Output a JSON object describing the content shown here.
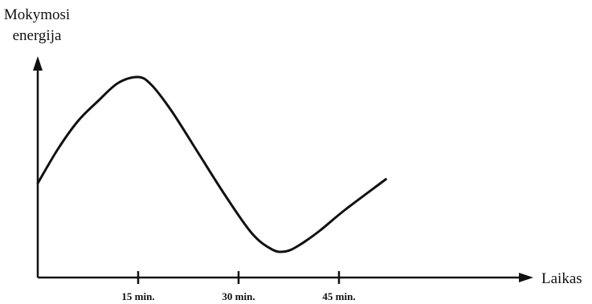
{
  "chart_data": {
    "type": "line",
    "ylabel": [
      "Mokymosi",
      "energija"
    ],
    "xlabel": "Laikas",
    "xlim": [
      0,
      72
    ],
    "ylim": [
      0,
      10
    ],
    "xticks": [
      {
        "value": 15,
        "label": "15 min."
      },
      {
        "value": 30,
        "label": "30 min."
      },
      {
        "value": 45,
        "label": "45 min."
      }
    ],
    "series": [
      {
        "color": "#111111",
        "x": [
          0,
          3,
          6,
          9,
          12,
          15,
          17,
          20,
          24,
          28,
          32,
          35,
          37,
          39,
          42,
          46,
          52
        ],
        "y": [
          4.7,
          6.4,
          7.8,
          8.8,
          9.7,
          10.0,
          9.6,
          8.3,
          6.2,
          4.1,
          2.2,
          1.4,
          1.3,
          1.6,
          2.3,
          3.4,
          4.9
        ]
      }
    ],
    "grid": false,
    "axis_color": "#111111"
  }
}
